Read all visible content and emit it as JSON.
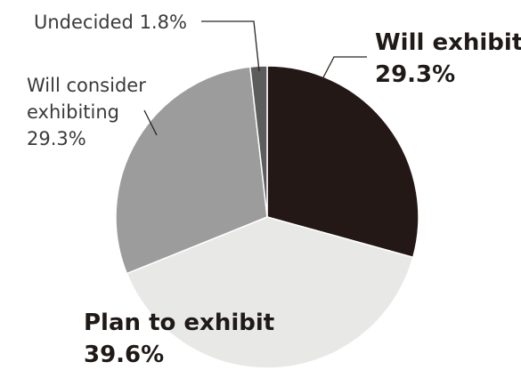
{
  "chart_data": {
    "type": "pie",
    "title": "",
    "slices": [
      {
        "name": "Will exhibit",
        "value_label": "29.3%",
        "value": 29.3,
        "color": "#231815"
      },
      {
        "name": "Plan to exhibit",
        "value_label": "39.6%",
        "value": 39.6,
        "color": "#e8e8e7"
      },
      {
        "name": "Will consider exhibiting",
        "value_label": "29.3%",
        "value": 29.3,
        "color": "#9c9c9c"
      },
      {
        "name": "Undecided",
        "value_label": "1.8%",
        "value": 1.8,
        "color": "#5c5c5c"
      }
    ],
    "legend": "none",
    "labels": {
      "will_exhibit": {
        "line1": "Will exhibit",
        "line2": "29.3%"
      },
      "plan_to_exhibit": {
        "line1": "Plan to exhibit",
        "line2": "39.6%"
      },
      "will_consider": {
        "line1": "Will consider",
        "line2": "exhibiting",
        "line3": "29.3%"
      },
      "undecided": {
        "line1": "Undecided 1.8%"
      }
    }
  }
}
